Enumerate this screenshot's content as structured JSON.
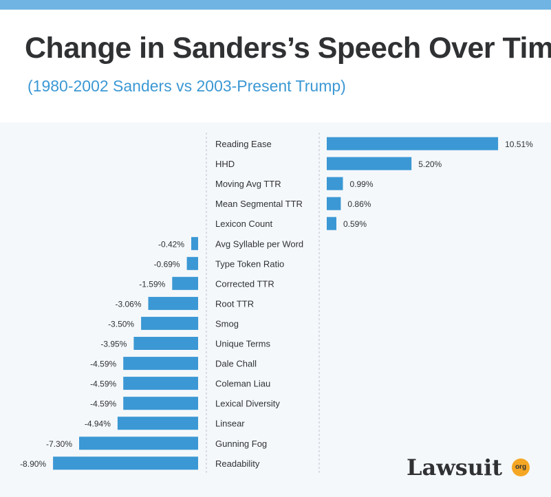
{
  "header": {
    "title": "Change in Sanders’s Speech Over Time",
    "subtitle": "(1980-2002 Sanders vs 2003-Present Trump)"
  },
  "logo": {
    "text": "Lawsuit",
    "badge": "org"
  },
  "colors": {
    "bar": "#3b98d4",
    "top_bar": "#6fb4e2",
    "panel": "#f5f8fb",
    "text": "#2f3133",
    "subtitle": "#3b98d4",
    "logo_badge": "#f5a623"
  },
  "chart_data": {
    "type": "bar",
    "orientation": "horizontal",
    "title": "Change in Sanders’s Speech Over Time",
    "subtitle": "(1980-2002 Sanders vs 2003-Present Trump)",
    "xlabel": "",
    "ylabel": "",
    "grid": false,
    "categories": [
      "Reading Ease",
      "HHD",
      "Moving Avg TTR",
      "Mean Segmental TTR",
      "Lexicon Count",
      "Avg Syllable per Word",
      "Type Token Ratio",
      "Corrected TTR",
      "Root TTR",
      "Smog",
      "Unique Terms",
      "Dale Chall",
      "Coleman Liau",
      "Lexical Diversity",
      "Linsear",
      "Gunning Fog",
      "Readability"
    ],
    "values": [
      10.51,
      5.2,
      0.99,
      0.86,
      0.59,
      -0.42,
      -0.69,
      -1.59,
      -3.06,
      -3.5,
      -3.95,
      -4.59,
      -4.59,
      -4.59,
      -4.94,
      -7.3,
      -8.9
    ],
    "value_labels": [
      "10.51%",
      "5.20%",
      "0.99%",
      "0.86%",
      "0.59%",
      "-0.42%",
      "-0.69%",
      "-1.59%",
      "-3.06%",
      "-3.50%",
      "-3.95%",
      "-4.59%",
      "-4.59%",
      "-4.59%",
      "-4.94%",
      "-7.30%",
      "-8.90%"
    ],
    "unit": "%"
  }
}
